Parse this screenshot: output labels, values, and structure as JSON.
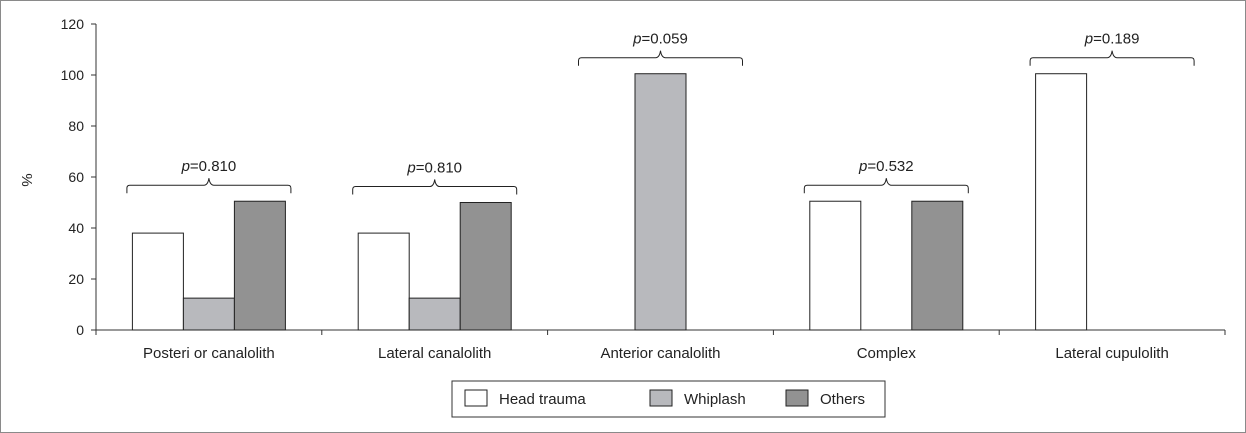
{
  "chart_data": {
    "type": "bar",
    "ylabel": "%",
    "ylim": [
      0,
      120
    ],
    "yticks": [
      "0",
      "20",
      "40",
      "60",
      "80",
      "100",
      "120"
    ],
    "categories": [
      "Posteri or canalolith",
      "Lateral canalolith",
      "Anterior canalolith",
      "Complex",
      "Lateral cupulolith"
    ],
    "series": [
      {
        "name": "Head trauma",
        "color": "#ffffff",
        "values": [
          38,
          38,
          0,
          50.5,
          100.5
        ]
      },
      {
        "name": "Whiplash",
        "color": "#b8b9bd",
        "values": [
          12.5,
          12.5,
          100.5,
          0,
          0
        ]
      },
      {
        "name": "Others",
        "color": "#929292",
        "values": [
          50.5,
          50,
          0,
          50.5,
          0
        ]
      }
    ],
    "annotations": [
      {
        "category": "Posteri or canalolith",
        "p_label": "p",
        "p_value": "=0.810"
      },
      {
        "category": "Lateral canalolith",
        "p_label": "p",
        "p_value": "=0.810"
      },
      {
        "category": "Anterior canalolith",
        "p_label": "p",
        "p_value": "=0.059"
      },
      {
        "category": "Complex",
        "p_label": "p",
        "p_value": "=0.532"
      },
      {
        "category": "Lateral cupulolith",
        "p_label": "p",
        "p_value": "=0.189"
      }
    ],
    "legend_position": "bottom-center",
    "grid": false
  }
}
